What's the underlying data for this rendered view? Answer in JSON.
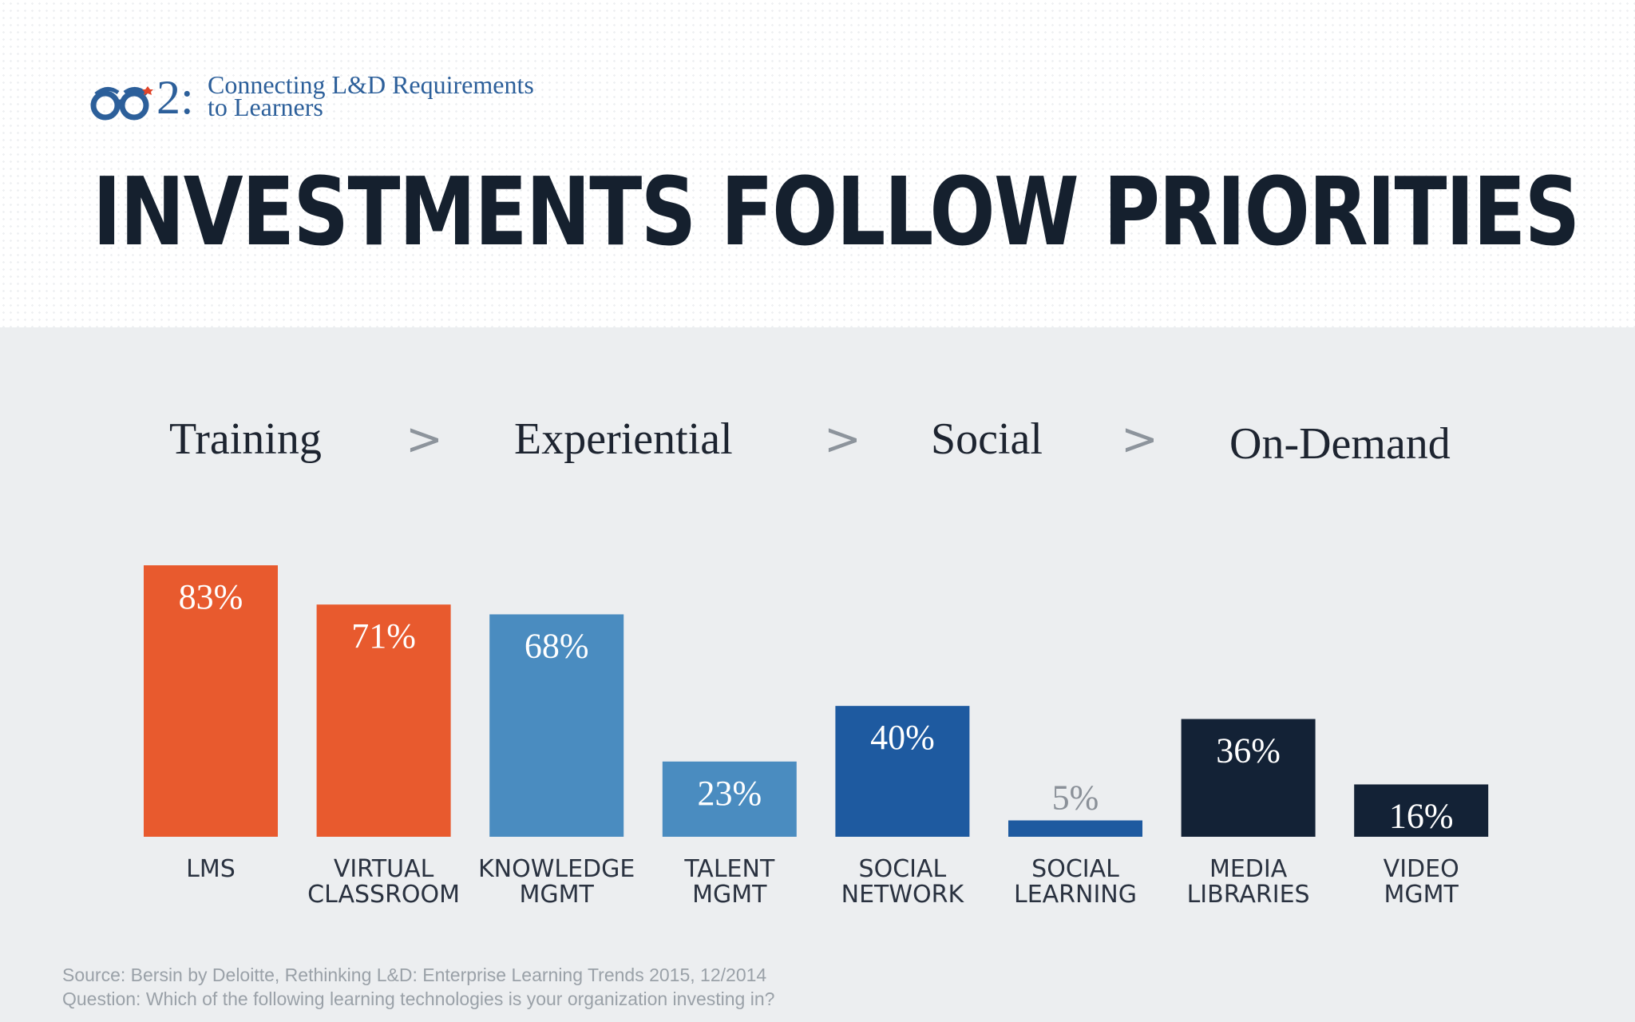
{
  "header": {
    "logo_number": "2:",
    "logo_line1": "Connecting L&D Requirements",
    "logo_line2": "to Learners",
    "title": "INVESTMENTS FOLLOW PRIORITIES"
  },
  "stages": [
    "Training",
    "Experiential",
    "Social",
    "On-Demand"
  ],
  "arrow_glyph": ">",
  "colors": {
    "training": "#e85a2e",
    "experiential": "#4a8cc0",
    "social": "#1e5aa0",
    "on_demand": "#132236"
  },
  "chart_data": {
    "type": "bar",
    "categories": [
      [
        "LMS"
      ],
      [
        "VIRTUAL",
        "CLASSROOM"
      ],
      [
        "KNOWLEDGE",
        "MGMT"
      ],
      [
        "TALENT",
        "MGMT"
      ],
      [
        "SOCIAL",
        "NETWORK"
      ],
      [
        "SOCIAL",
        "LEARNING"
      ],
      [
        "MEDIA",
        "LIBRARIES"
      ],
      [
        "VIDEO",
        "MGMT"
      ]
    ],
    "values": [
      83,
      71,
      68,
      23,
      40,
      5,
      36,
      16
    ],
    "value_labels": [
      "83%",
      "71%",
      "68%",
      "23%",
      "40%",
      "5%",
      "36%",
      "16%"
    ],
    "groups": [
      "training",
      "training",
      "experiential",
      "experiential",
      "social",
      "social",
      "on_demand",
      "on_demand"
    ],
    "ylim": [
      0,
      83
    ],
    "grid": false,
    "legend": "none"
  },
  "footer": {
    "source": "Source: Bersin by Deloitte, Rethinking L&D: Enterprise Learning Trends 2015, 12/2014",
    "question": "Question: Which of the following learning technologies is your organization investing in?"
  }
}
